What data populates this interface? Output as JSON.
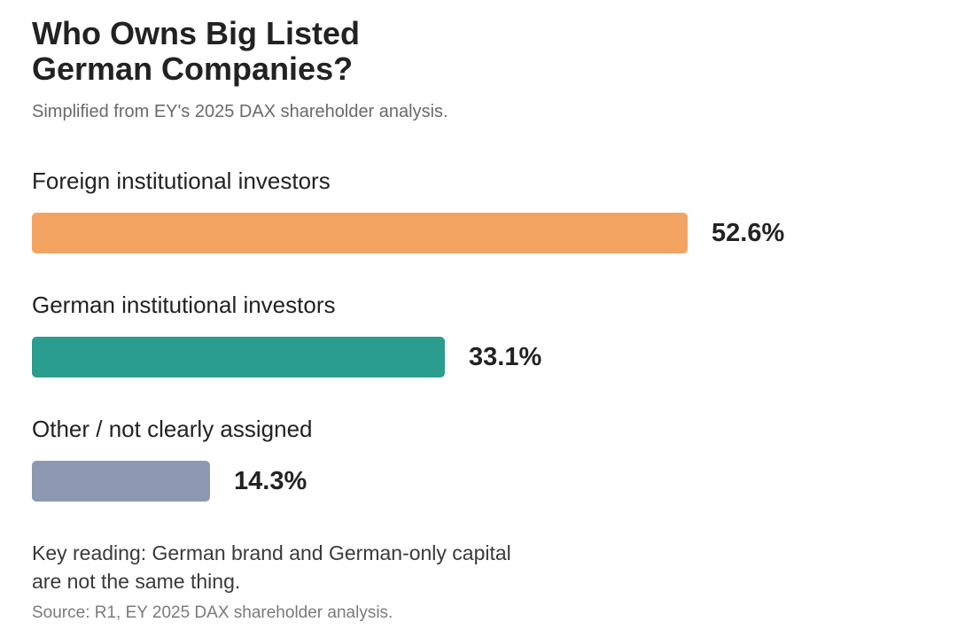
{
  "chart_data": {
    "type": "bar",
    "orientation": "horizontal",
    "title_lines": [
      "Who Owns Big Listed",
      "German Companies?"
    ],
    "subtitle": "Simplified from EY's 2025 DAX shareholder analysis.",
    "categories": [
      "Foreign institutional investors",
      "German institutional investors",
      "Other / not clearly assigned"
    ],
    "values": [
      52.6,
      33.1,
      14.3
    ],
    "value_labels": [
      "52.6%",
      "33.1%",
      "14.3%"
    ],
    "colors": [
      "#f3a462",
      "#2a9d8f",
      "#8d99b2"
    ],
    "xlim": [
      0,
      52.6
    ],
    "grid": false,
    "legend": "none"
  },
  "note_lines": [
    "Key reading: German brand and German-only capital",
    "are not the same thing."
  ],
  "source": "Source: R1, EY 2025 DAX shareholder analysis."
}
